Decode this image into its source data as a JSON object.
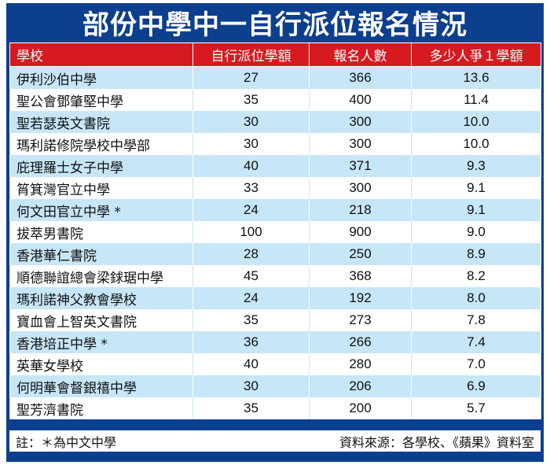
{
  "title": "部份中學中一自行派位報名情況",
  "columns": [
    "學校",
    "自行派位學額",
    "報名人數",
    "多少人爭１學額"
  ],
  "rows": [
    [
      "伊利沙伯中學",
      "27",
      "366",
      "13.6"
    ],
    [
      "聖公會鄧肇堅中學",
      "35",
      "400",
      "11.4"
    ],
    [
      "聖若瑟英文書院",
      "30",
      "300",
      "10.0"
    ],
    [
      "瑪利諾修院學校中學部",
      "30",
      "300",
      "10.0"
    ],
    [
      "庇理羅士女子中學",
      "40",
      "371",
      "9.3"
    ],
    [
      "筲箕灣官立中學",
      "33",
      "300",
      "9.1"
    ],
    [
      "何文田官立中學 *",
      "24",
      "218",
      "9.1"
    ],
    [
      "拔萃男書院",
      "100",
      "900",
      "9.0"
    ],
    [
      "香港華仁書院",
      "28",
      "250",
      "8.9"
    ],
    [
      "順德聯誼總會梁銶琚中學",
      "45",
      "368",
      "8.2"
    ],
    [
      "瑪利諾神父教會學校",
      "24",
      "192",
      "8.0"
    ],
    [
      "寶血會上智英文書院",
      "35",
      "273",
      "7.8"
    ],
    [
      "香港培正中學 *",
      "36",
      "266",
      "7.4"
    ],
    [
      "英華女學校",
      "40",
      "280",
      "7.0"
    ],
    [
      "何明華會督銀禧中學",
      "30",
      "206",
      "6.9"
    ],
    [
      "聖芳濟書院",
      "35",
      "200",
      "5.7"
    ]
  ],
  "footer": {
    "note": "註：＊為中文中學",
    "source": "資料來源：各學校、《蘋果》資料室"
  },
  "colors": {
    "frame": "#0d3f8f",
    "header": "#d71920",
    "row_alt": "#c7e6f7"
  }
}
